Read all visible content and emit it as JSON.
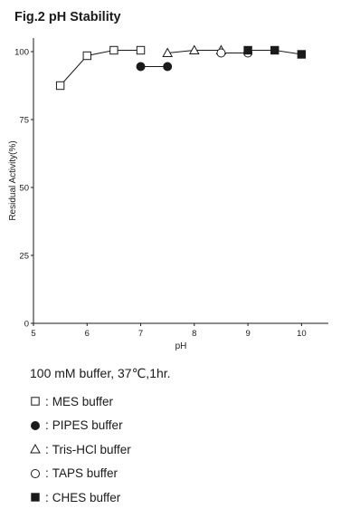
{
  "title": "Fig.2 pH Stability",
  "chart_data": {
    "type": "line",
    "title": "Fig.2 pH Stability",
    "xlabel": "pH",
    "ylabel": "Residual Activity(%)",
    "xlim": [
      5,
      10.5
    ],
    "ylim": [
      0,
      105
    ],
    "xticks": [
      5,
      6,
      7,
      8,
      9,
      10
    ],
    "yticks": [
      0,
      25,
      50,
      75,
      100
    ],
    "grid": false,
    "series": [
      {
        "name": "MES buffer",
        "marker": "square-open",
        "x": [
          5.5,
          6.0,
          6.5,
          7.0
        ],
        "y": [
          87.5,
          98.5,
          100.5,
          100.5
        ]
      },
      {
        "name": "PIPES buffer",
        "marker": "circle-filled",
        "x": [
          7.0,
          7.5
        ],
        "y": [
          94.5,
          94.5
        ]
      },
      {
        "name": "Tris-HCl buffer",
        "marker": "triangle-open",
        "x": [
          7.5,
          8.0,
          8.5
        ],
        "y": [
          99.5,
          100.5,
          100.5
        ]
      },
      {
        "name": "TAPS buffer",
        "marker": "circle-open",
        "x": [
          8.5,
          9.0
        ],
        "y": [
          99.5,
          99.5
        ]
      },
      {
        "name": "CHES buffer",
        "marker": "square-filled",
        "x": [
          9.0,
          9.5,
          10.0
        ],
        "y": [
          100.5,
          100.5,
          99.0
        ]
      }
    ]
  },
  "condition_text": "100 mM buffer, 37℃,1hr.",
  "legend": [
    {
      "marker": "square-open",
      "label": "MES buffer"
    },
    {
      "marker": "circle-filled",
      "label": "PIPES buffer"
    },
    {
      "marker": "triangle-open",
      "label": "Tris-HCl buffer"
    },
    {
      "marker": "circle-open",
      "label": "TAPS buffer"
    },
    {
      "marker": "square-filled",
      "label": "CHES buffer"
    }
  ],
  "separator": ":",
  "colors": {
    "ink": "#1a1a1a"
  }
}
